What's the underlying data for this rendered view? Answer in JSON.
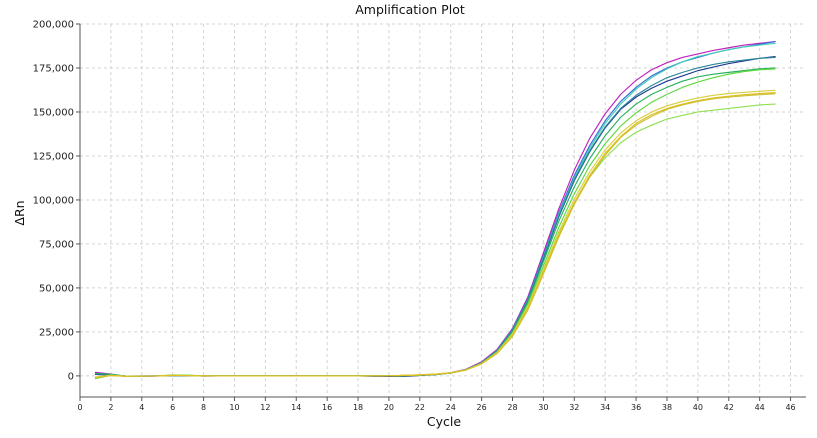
{
  "chart_data": {
    "type": "line",
    "title": "Amplification Plot",
    "xlabel": "Cycle",
    "ylabel": "ΔRn",
    "xlim": [
      0,
      47
    ],
    "ylim": [
      -12000,
      200000
    ],
    "x_ticks": [
      0,
      2,
      4,
      6,
      8,
      10,
      12,
      14,
      16,
      18,
      20,
      22,
      24,
      26,
      28,
      30,
      32,
      34,
      36,
      38,
      40,
      42,
      44,
      46
    ],
    "x_tick_labels": [
      "0",
      "2",
      "4",
      "6",
      "8",
      "10",
      "12",
      "14",
      "16",
      "18",
      "20",
      "22",
      "24",
      "26",
      "28",
      "30",
      "32",
      "34",
      "36",
      "38",
      "40",
      "42",
      "44",
      "46"
    ],
    "y_ticks": [
      0,
      25000,
      50000,
      75000,
      100000,
      125000,
      150000,
      175000,
      200000
    ],
    "y_tick_labels": [
      "0",
      "25,000",
      "50,000",
      "75,000",
      "100,000",
      "125,000",
      "150,000",
      "175,000",
      "200,000"
    ],
    "grid": true,
    "legend": "none",
    "x": [
      1,
      2,
      3,
      4,
      5,
      6,
      7,
      8,
      9,
      10,
      11,
      12,
      13,
      14,
      15,
      16,
      17,
      18,
      19,
      20,
      21,
      22,
      23,
      24,
      25,
      26,
      27,
      28,
      29,
      30,
      31,
      32,
      33,
      34,
      35,
      36,
      37,
      38,
      39,
      40,
      41,
      42,
      43,
      44,
      45
    ],
    "series": [
      {
        "color": "#c020c0",
        "values": [
          2000,
          1000,
          -300,
          -200,
          -100,
          300,
          200,
          -100,
          0,
          0,
          0,
          0,
          0,
          100,
          0,
          0,
          0,
          0,
          0,
          0,
          200,
          400,
          800,
          1800,
          3800,
          8000,
          15000,
          27000,
          45000,
          70000,
          95000,
          117000,
          135000,
          149000,
          160000,
          168000,
          174000,
          178000,
          181000,
          183000,
          185000,
          186500,
          188000,
          189000,
          190000
        ]
      },
      {
        "color": "#3c6ad8",
        "values": [
          1500,
          800,
          -200,
          -100,
          0,
          200,
          150,
          -50,
          0,
          0,
          0,
          0,
          0,
          0,
          0,
          0,
          0,
          0,
          0,
          0,
          200,
          400,
          800,
          1700,
          3600,
          7600,
          14500,
          26500,
          44000,
          68500,
          93000,
          114000,
          131000,
          145000,
          156000,
          164000,
          170500,
          175000,
          178500,
          181000,
          183500,
          185500,
          187000,
          188500,
          190000
        ]
      },
      {
        "color": "#40d0b8",
        "values": [
          1000,
          600,
          -100,
          0,
          0,
          100,
          100,
          0,
          0,
          0,
          0,
          0,
          0,
          0,
          0,
          0,
          0,
          0,
          0,
          0,
          200,
          400,
          800,
          1700,
          3600,
          7500,
          14300,
          26000,
          43500,
          67500,
          92000,
          112500,
          129500,
          143500,
          154500,
          163000,
          169500,
          174500,
          178500,
          181500,
          183500,
          185500,
          187000,
          188000,
          189000
        ]
      },
      {
        "color": "#1c3a90",
        "values": [
          800,
          500,
          -200,
          -100,
          0,
          100,
          100,
          -100,
          0,
          0,
          0,
          0,
          0,
          0,
          0,
          0,
          0,
          0,
          -200,
          -300,
          -200,
          200,
          700,
          1600,
          3400,
          7300,
          14000,
          25500,
          43000,
          66500,
          90500,
          111000,
          127500,
          141000,
          151500,
          158500,
          163500,
          167500,
          170500,
          173500,
          175500,
          177500,
          179000,
          180500,
          181500
        ]
      },
      {
        "color": "#2a8898",
        "values": [
          1200,
          700,
          -100,
          0,
          0,
          200,
          100,
          0,
          0,
          0,
          0,
          0,
          0,
          0,
          0,
          0,
          0,
          0,
          0,
          0,
          200,
          400,
          800,
          1700,
          3600,
          7400,
          14200,
          25800,
          43200,
          67000,
          91000,
          111500,
          128000,
          141500,
          152000,
          159500,
          165000,
          169500,
          172500,
          175000,
          177000,
          178500,
          179500,
          180500,
          181000
        ]
      },
      {
        "color": "#28b060",
        "values": [
          1300,
          900,
          -200,
          -100,
          0,
          400,
          300,
          -50,
          0,
          0,
          0,
          0,
          0,
          0,
          0,
          0,
          0,
          0,
          0,
          0,
          200,
          400,
          800,
          1700,
          3500,
          7200,
          13800,
          25000,
          42000,
          65000,
          88000,
          107500,
          123500,
          136500,
          147000,
          154500,
          160000,
          164000,
          167500,
          170000,
          171500,
          172500,
          173500,
          174500,
          175000
        ]
      },
      {
        "color": "#60d840",
        "values": [
          -1500,
          300,
          -200,
          -100,
          0,
          500,
          400,
          0,
          0,
          0,
          0,
          0,
          0,
          0,
          0,
          0,
          0,
          0,
          0,
          0,
          200,
          400,
          800,
          1600,
          3400,
          7000,
          13500,
          24500,
          41000,
          62500,
          84500,
          103500,
          119500,
          132000,
          142000,
          149500,
          155500,
          160000,
          164000,
          167000,
          169500,
          171500,
          173000,
          174000,
          174500
        ]
      },
      {
        "color": "#90e050",
        "values": [
          -800,
          400,
          -200,
          -100,
          0,
          300,
          300,
          0,
          0,
          0,
          0,
          0,
          0,
          0,
          0,
          0,
          0,
          0,
          0,
          0,
          300,
          500,
          900,
          1700,
          3400,
          7000,
          13200,
          23500,
          39000,
          59500,
          80500,
          98500,
          113000,
          124000,
          132500,
          138500,
          142500,
          146000,
          148000,
          150000,
          151000,
          152000,
          153000,
          154000,
          154500
        ]
      },
      {
        "color": "#d8d040",
        "values": [
          -600,
          300,
          -150,
          -100,
          0,
          200,
          200,
          0,
          0,
          0,
          0,
          0,
          0,
          0,
          0,
          0,
          0,
          0,
          0,
          0,
          300,
          600,
          1000,
          1800,
          3500,
          7100,
          13300,
          23800,
          39500,
          60500,
          82000,
          100500,
          116000,
          128500,
          138000,
          145000,
          150000,
          153500,
          156000,
          158000,
          159500,
          160500,
          161200,
          161800,
          162300
        ]
      },
      {
        "color": "#c8c038",
        "values": [
          -1000,
          200,
          -200,
          -100,
          0,
          300,
          200,
          0,
          0,
          0,
          0,
          0,
          0,
          0,
          0,
          0,
          0,
          0,
          0,
          0,
          300,
          500,
          900,
          1700,
          3400,
          6800,
          12700,
          22500,
          37500,
          58000,
          79000,
          97500,
          113000,
          125500,
          135500,
          142500,
          147500,
          151500,
          154000,
          156000,
          157500,
          158500,
          159200,
          159800,
          160300
        ]
      },
      {
        "color": "#e0c020",
        "values": [
          -900,
          200,
          -200,
          -100,
          0,
          300,
          200,
          0,
          0,
          0,
          0,
          0,
          0,
          0,
          0,
          0,
          0,
          0,
          0,
          0,
          300,
          600,
          1000,
          1800,
          3400,
          6900,
          13000,
          23000,
          38500,
          59000,
          80000,
          98500,
          114000,
          126500,
          136000,
          143500,
          148500,
          152000,
          154500,
          156500,
          158000,
          159000,
          159800,
          160500,
          161000
        ]
      }
    ]
  }
}
